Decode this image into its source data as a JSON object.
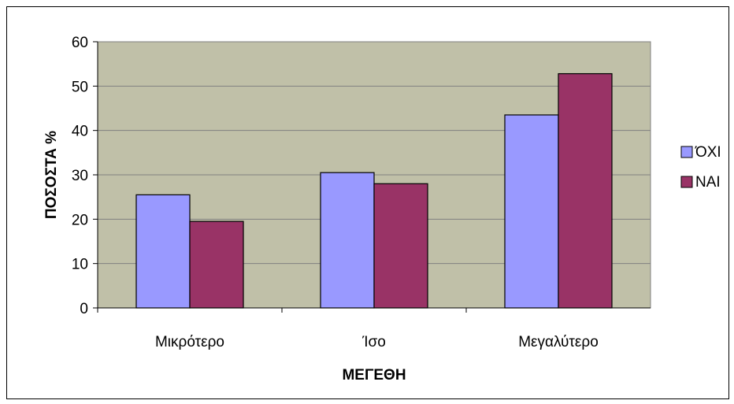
{
  "chart_data": {
    "type": "bar",
    "categories": [
      "Μικρότερο",
      "Ίσο",
      "Μεγαλύτερο"
    ],
    "series": [
      {
        "name": "ΌΧΙ",
        "values": [
          25.5,
          30.5,
          43.5
        ],
        "color": "#9999ff"
      },
      {
        "name": "ΝΑΙ",
        "values": [
          19.5,
          28.0,
          52.8
        ],
        "color": "#993366"
      }
    ],
    "xlabel": "ΜΕΓΕΘΗ",
    "ylabel": "ΠΟΣΟΣΤΑ %",
    "ylim": [
      0,
      60
    ],
    "yticks": [
      "0",
      "10",
      "20",
      "30",
      "40",
      "50",
      "60"
    ],
    "grid": true,
    "legend_position": "right",
    "plot_background": "#c0c0a8",
    "gridline_color": "#808080"
  }
}
